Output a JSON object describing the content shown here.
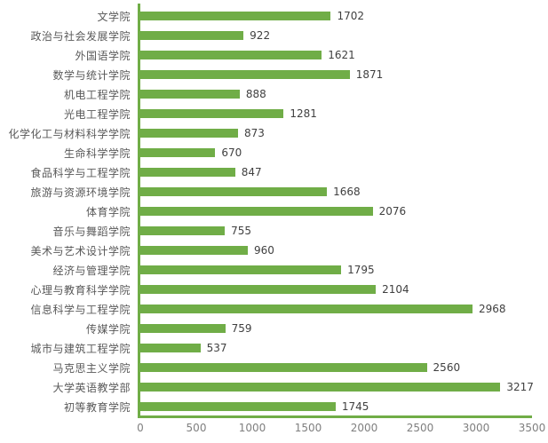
{
  "chart_data": {
    "type": "bar",
    "orientation": "horizontal",
    "title": "",
    "categories": [
      "文学院",
      "政治与社会发展学院",
      "外国语学院",
      "数学与统计学院",
      "机电工程学院",
      "光电工程学院",
      "化学化工与材料科学学院",
      "生命科学学院",
      "食品科学与工程学院",
      "旅游与资源环境学院",
      "体育学院",
      "音乐与舞蹈学院",
      "美术与艺术设计学院",
      "经济与管理学院",
      "心理与教育科学学院",
      "信息科学与工程学院",
      "传媒学院",
      "城市与建筑工程学院",
      "马克思主义学院",
      "大学英语教学部",
      "初等教育学院"
    ],
    "values": [
      1702,
      922,
      1621,
      1871,
      888,
      1281,
      873,
      670,
      847,
      1668,
      2076,
      755,
      960,
      1795,
      2104,
      2968,
      759,
      537,
      2560,
      3217,
      1745
    ],
    "x_ticks": [
      "0",
      "500",
      "1000",
      "1500",
      "2000",
      "2500",
      "3000",
      "3500"
    ],
    "x_tick_values": [
      0,
      500,
      1000,
      1500,
      2000,
      2500,
      3000,
      3500
    ],
    "xlim": [
      0,
      3500
    ],
    "grid": false,
    "legend": false,
    "data_labels": true,
    "colors": {
      "bar": "#70AD47",
      "axis_line": "#70AD47",
      "category_label": "#595959",
      "value_label": "#404040",
      "tick_label": "#7F7F7F",
      "background": "#FFFFFF"
    }
  }
}
